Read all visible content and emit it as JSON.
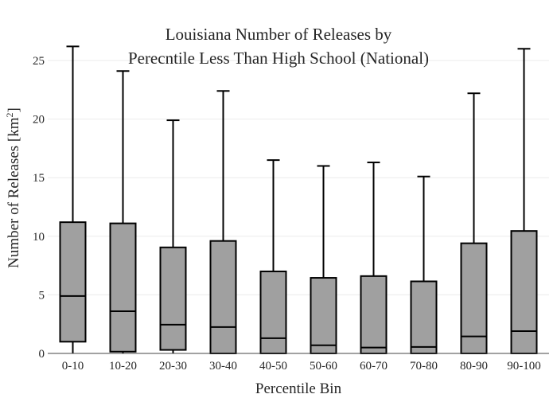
{
  "chart_data": {
    "type": "box",
    "title_lines": [
      "Louisiana Number of Releases by",
      "Perecntile Less Than High School (National)"
    ],
    "xlabel": "Percentile Bin",
    "ylabel_main": "Number of Releases  [km",
    "ylabel_sup": "2",
    "ylabel_end": "]",
    "ylim": [
      0,
      26.5
    ],
    "yticks": [
      0,
      5,
      10,
      15,
      20,
      25
    ],
    "grid": true,
    "categories": [
      "0-10",
      "10-20",
      "20-30",
      "30-40",
      "40-50",
      "50-60",
      "60-70",
      "70-80",
      "80-90",
      "90-100"
    ],
    "boxes": [
      {
        "min": 0,
        "q1": 1.0,
        "median": 4.9,
        "q3": 11.2,
        "max": 26.2
      },
      {
        "min": 0,
        "q1": 0.15,
        "median": 3.6,
        "q3": 11.1,
        "max": 24.1
      },
      {
        "min": 0,
        "q1": 0.3,
        "median": 2.45,
        "q3": 9.05,
        "max": 19.9
      },
      {
        "min": 0,
        "q1": 0.0,
        "median": 2.25,
        "q3": 9.6,
        "max": 22.4
      },
      {
        "min": 0,
        "q1": 0.0,
        "median": 1.3,
        "q3": 7.0,
        "max": 16.5
      },
      {
        "min": 0,
        "q1": 0.0,
        "median": 0.7,
        "q3": 6.45,
        "max": 16.0
      },
      {
        "min": 0,
        "q1": 0.0,
        "median": 0.5,
        "q3": 6.6,
        "max": 16.3
      },
      {
        "min": 0,
        "q1": 0.0,
        "median": 0.55,
        "q3": 6.15,
        "max": 15.1
      },
      {
        "min": 0,
        "q1": 0.0,
        "median": 1.45,
        "q3": 9.4,
        "max": 22.2
      },
      {
        "min": 0,
        "q1": 0.0,
        "median": 1.9,
        "q3": 10.45,
        "max": 26.0
      }
    ],
    "colors": {
      "box_fill": "#a0a0a0",
      "box_stroke": "#000000"
    }
  }
}
